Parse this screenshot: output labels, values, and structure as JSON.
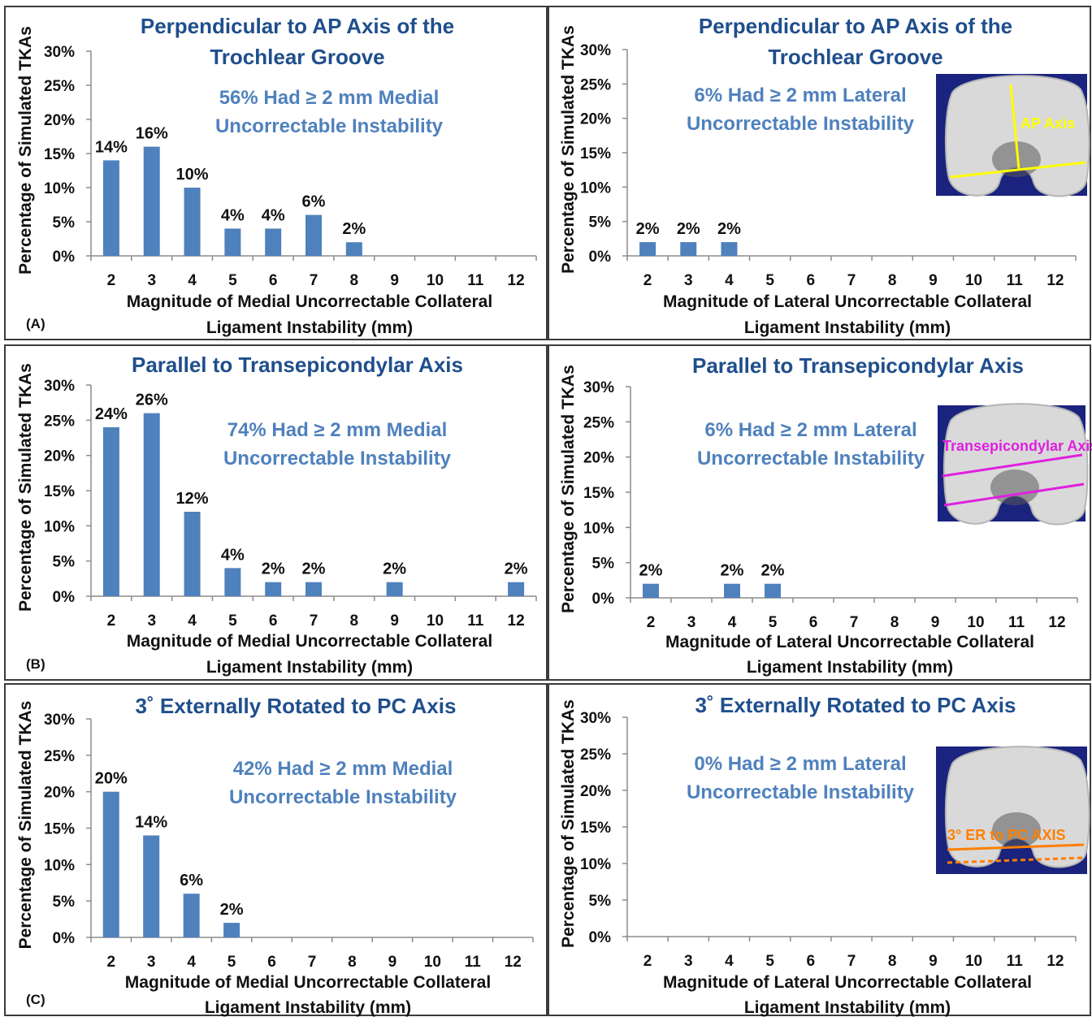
{
  "colors": {
    "bar": "#4f81bd",
    "title": "#1f4e8c",
    "annotation": "#4f81bd",
    "inset_background": "#1a237e",
    "ap_axis": "#ffff00",
    "transepicondylar_axis": "#e020e0",
    "pc_axis": "#ff7f00"
  },
  "insets": {
    "a_label": "AP Axis",
    "b_label": "Transepicondylar Axis",
    "c_label": "3° ER to PC AXIS"
  },
  "chart_data": [
    {
      "type": "bar",
      "panel_letter": "(A)",
      "title_line1": "Perpendicular to AP Axis of the",
      "title_line2": "Trochlear Groove",
      "annotation_line1": "56% Had ≥ 2 mm Medial",
      "annotation_line2": "Uncorrectable Instability",
      "ylabel": "Percentage of Simulated TKAs",
      "xlabel_line1": "Magnitude of Medial Uncorrectable Collateral",
      "xlabel_line2": "Ligament Instability (mm)",
      "categories": [
        "2",
        "3",
        "4",
        "5",
        "6",
        "7",
        "8",
        "9",
        "10",
        "11",
        "12"
      ],
      "values": [
        14,
        16,
        10,
        4,
        4,
        6,
        2,
        0,
        0,
        0,
        0
      ],
      "value_labels": [
        "14%",
        "16%",
        "10%",
        "4%",
        "4%",
        "6%",
        "2%",
        "",
        "",
        "",
        ""
      ],
      "yticks": [
        "0%",
        "5%",
        "10%",
        "15%",
        "20%",
        "25%",
        "30%"
      ],
      "ylim": [
        0,
        30
      ],
      "grid": false,
      "legend": false
    },
    {
      "type": "bar",
      "panel_letter": "",
      "title_line1": "Perpendicular to AP Axis of the",
      "title_line2": "Trochlear Groove",
      "annotation_line1": "6% Had ≥ 2 mm Lateral",
      "annotation_line2": "Uncorrectable Instability",
      "ylabel": "Percentage of Simulated TKAs",
      "xlabel_line1": "Magnitude of Lateral Uncorrectable Collateral",
      "xlabel_line2": "Ligament Instability (mm)",
      "categories": [
        "2",
        "3",
        "4",
        "5",
        "6",
        "7",
        "8",
        "9",
        "10",
        "11",
        "12"
      ],
      "values": [
        2,
        2,
        2,
        0,
        0,
        0,
        0,
        0,
        0,
        0,
        0
      ],
      "value_labels": [
        "2%",
        "2%",
        "2%",
        "",
        "",
        "",
        "",
        "",
        "",
        "",
        ""
      ],
      "yticks": [
        "0%",
        "5%",
        "10%",
        "15%",
        "20%",
        "25%",
        "30%"
      ],
      "ylim": [
        0,
        30
      ],
      "grid": false,
      "legend": false
    },
    {
      "type": "bar",
      "panel_letter": "(B)",
      "title_line1": "Parallel to Transepicondylar Axis",
      "title_line2": "",
      "annotation_line1": "74% Had ≥ 2 mm Medial",
      "annotation_line2": "Uncorrectable Instability",
      "ylabel": "Percentage of Simulated TKAs",
      "xlabel_line1": "Magnitude of Medial Uncorrectable Collateral",
      "xlabel_line2": "Ligament Instability (mm)",
      "categories": [
        "2",
        "3",
        "4",
        "5",
        "6",
        "7",
        "8",
        "9",
        "10",
        "11",
        "12"
      ],
      "values": [
        24,
        26,
        12,
        4,
        2,
        2,
        0,
        2,
        0,
        0,
        2
      ],
      "value_labels": [
        "24%",
        "26%",
        "12%",
        "4%",
        "2%",
        "2%",
        "",
        "2%",
        "",
        "",
        "2%"
      ],
      "yticks": [
        "0%",
        "5%",
        "10%",
        "15%",
        "20%",
        "25%",
        "30%"
      ],
      "ylim": [
        0,
        30
      ],
      "grid": false,
      "legend": false
    },
    {
      "type": "bar",
      "panel_letter": "",
      "title_line1": "Parallel to Transepicondylar Axis",
      "title_line2": "",
      "annotation_line1": "6% Had ≥ 2 mm Lateral",
      "annotation_line2": "Uncorrectable Instability",
      "ylabel": "Percentage of Simulated TKAs",
      "xlabel_line1": "Magnitude of Lateral Uncorrectable Collateral",
      "xlabel_line2": "Ligament Instability (mm)",
      "categories": [
        "2",
        "3",
        "4",
        "5",
        "6",
        "7",
        "8",
        "9",
        "10",
        "11",
        "12"
      ],
      "values": [
        2,
        0,
        2,
        2,
        0,
        0,
        0,
        0,
        0,
        0,
        0
      ],
      "value_labels": [
        "2%",
        "",
        "2%",
        "2%",
        "",
        "",
        "",
        "",
        "",
        "",
        ""
      ],
      "yticks": [
        "0%",
        "5%",
        "10%",
        "15%",
        "20%",
        "25%",
        "30%"
      ],
      "ylim": [
        0,
        30
      ],
      "grid": false,
      "legend": false
    },
    {
      "type": "bar",
      "panel_letter": "(C)",
      "title_line1": "3˚ Externally Rotated to PC Axis",
      "title_line2": "",
      "annotation_line1": "42% Had ≥ 2 mm Medial",
      "annotation_line2": "Uncorrectable Instability",
      "ylabel": "Percentage of Simulated TKAs",
      "xlabel_line1": "Magnitude of Medial Uncorrectable Collateral",
      "xlabel_line2": "Ligament Instability (mm)",
      "categories": [
        "2",
        "3",
        "4",
        "5",
        "6",
        "7",
        "8",
        "9",
        "10",
        "11",
        "12"
      ],
      "values": [
        20,
        14,
        6,
        2,
        0,
        0,
        0,
        0,
        0,
        0,
        0
      ],
      "value_labels": [
        "20%",
        "14%",
        "6%",
        "2%",
        "",
        "",
        "",
        "",
        "",
        "",
        ""
      ],
      "yticks": [
        "0%",
        "5%",
        "10%",
        "15%",
        "20%",
        "25%",
        "30%"
      ],
      "ylim": [
        0,
        30
      ],
      "grid": false,
      "legend": false
    },
    {
      "type": "bar",
      "panel_letter": "",
      "title_line1": "3˚ Externally Rotated to PC Axis",
      "title_line2": "",
      "annotation_line1": "0% Had ≥ 2 mm Lateral",
      "annotation_line2": "Uncorrectable Instability",
      "ylabel": "Percentage of Simulated TKAs",
      "xlabel_line1": "Magnitude of Lateral Uncorrectable Collateral",
      "xlabel_line2": "Ligament Instability (mm)",
      "categories": [
        "2",
        "3",
        "4",
        "5",
        "6",
        "7",
        "8",
        "9",
        "10",
        "11",
        "12"
      ],
      "values": [
        0,
        0,
        0,
        0,
        0,
        0,
        0,
        0,
        0,
        0,
        0
      ],
      "value_labels": [
        "",
        "",
        "",
        "",
        "",
        "",
        "",
        "",
        "",
        "",
        ""
      ],
      "yticks": [
        "0%",
        "5%",
        "10%",
        "15%",
        "20%",
        "25%",
        "30%"
      ],
      "ylim": [
        0,
        30
      ],
      "grid": false,
      "legend": false
    }
  ]
}
